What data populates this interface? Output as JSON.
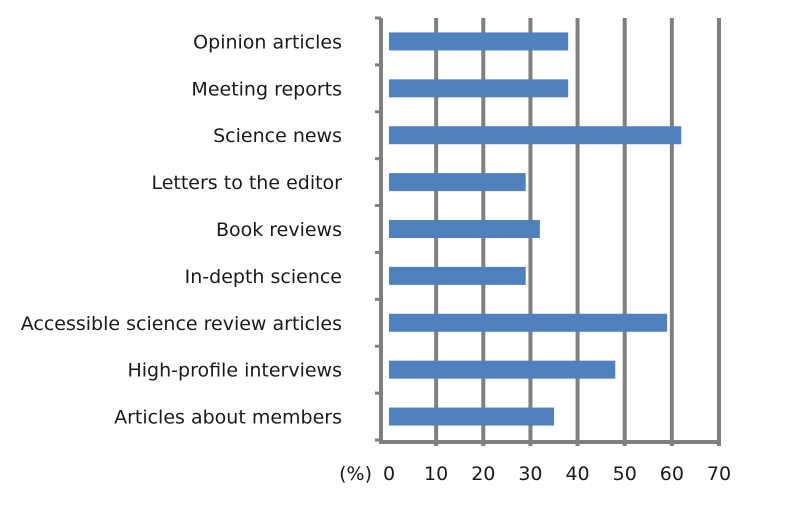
{
  "chart_data": {
    "type": "bar",
    "orientation": "horizontal",
    "categories": [
      "Opinion articles",
      "Meeting reports",
      "Science news",
      "Letters to the editor",
      "Book reviews",
      "In-depth science",
      "Accessible science review articles",
      "High-profile interviews",
      "Articles about members"
    ],
    "values": [
      38,
      38,
      62,
      29,
      32,
      29,
      59,
      48,
      35
    ],
    "title": "",
    "xlabel": "(%)",
    "ylabel": "",
    "xlim": [
      0,
      70
    ],
    "xticks": [
      "0",
      "10",
      "20",
      "30",
      "40",
      "50",
      "60",
      "70"
    ],
    "grid": "vertical",
    "legend": "none",
    "colors": {
      "bar": "#4f81bd",
      "grid": "#7f7f7f",
      "axis": "#7f7f7f"
    }
  }
}
